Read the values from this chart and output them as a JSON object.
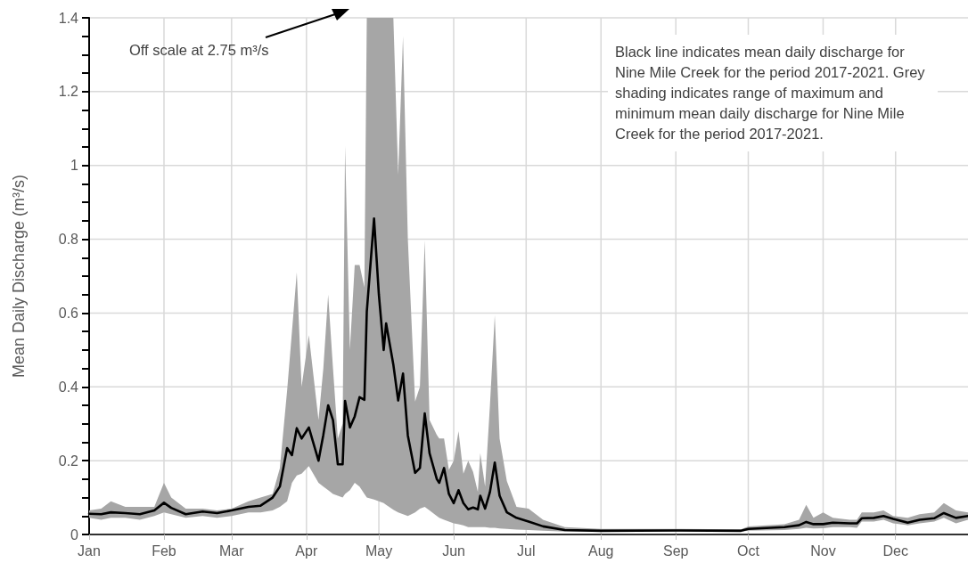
{
  "chart_data": {
    "type": "line",
    "ylabel": "Mean Daily Discharge (m³/s)",
    "annotations": [
      "Off scale at 2.75 m³/s",
      "Black line indicates mean daily discharge for Nine Mile Creek for the period 2017-2021. Grey shading indicates range of maximum and minimum mean daily discharge for Nine Mile Creek for the period 2017-2021."
    ],
    "x": [
      "--01-01",
      "--01-06",
      "--01-10",
      "--01-16",
      "--01-22",
      "--01-28",
      "--02-01",
      "--02-04",
      "--02-10",
      "--02-17",
      "--02-23",
      "--03-01",
      "--03-08",
      "--03-13",
      "--03-18",
      "--03-21",
      "--03-24",
      "--03-26",
      "--03-28",
      "--03-30",
      "--04-02",
      "--04-06",
      "--04-08",
      "--04-10",
      "--04-12",
      "--04-14",
      "--04-16",
      "--04-17",
      "--04-19",
      "--04-21",
      "--04-23",
      "--04-25",
      "--04-26",
      "--04-29",
      "--05-01",
      "--05-03",
      "--05-04",
      "--05-07",
      "--05-09",
      "--05-11",
      "--05-13",
      "--05-16",
      "--05-18",
      "--05-20",
      "--05-22",
      "--05-25",
      "--05-26",
      "--05-28",
      "--05-30",
      "--06-01",
      "--06-03",
      "--06-05",
      "--06-07",
      "--06-09",
      "--06-11",
      "--06-12",
      "--06-14",
      "--06-16",
      "--06-18",
      "--06-20",
      "--06-23",
      "--06-27",
      "--07-02",
      "--07-08",
      "--07-17",
      "--08-01",
      "--09-01",
      "--09-28",
      "--10-01",
      "--10-16",
      "--10-22",
      "--10-25",
      "--10-28",
      "--11-01",
      "--11-05",
      "--11-12",
      "--11-15",
      "--11-17",
      "--11-22",
      "--11-26",
      "--11-30",
      "--12-06",
      "--12-11",
      "--12-17",
      "--12-21",
      "--12-26",
      "--12-31"
    ],
    "series": [
      {
        "color": "#000000",
        "values": [
          0.056,
          0.055,
          0.06,
          0.058,
          0.055,
          0.065,
          0.086,
          0.072,
          0.055,
          0.062,
          0.058,
          0.065,
          0.075,
          0.078,
          0.1,
          0.13,
          0.234,
          0.215,
          0.288,
          0.26,
          0.29,
          0.2,
          0.27,
          0.35,
          0.31,
          0.19,
          0.19,
          0.362,
          0.29,
          0.32,
          0.372,
          0.365,
          0.604,
          0.856,
          0.65,
          0.5,
          0.572,
          0.46,
          0.363,
          0.436,
          0.268,
          0.167,
          0.18,
          0.328,
          0.22,
          0.15,
          0.14,
          0.18,
          0.11,
          0.085,
          0.12,
          0.085,
          0.068,
          0.073,
          0.068,
          0.105,
          0.07,
          0.115,
          0.195,
          0.105,
          0.06,
          0.045,
          0.035,
          0.022,
          0.012,
          0.01,
          0.011,
          0.01,
          0.015,
          0.02,
          0.025,
          0.034,
          0.028,
          0.028,
          0.032,
          0.03,
          0.03,
          0.044,
          0.045,
          0.05,
          0.042,
          0.032,
          0.04,
          0.044,
          0.058,
          0.045,
          0.05
        ],
        "lower": [
          0.045,
          0.04,
          0.045,
          0.045,
          0.04,
          0.05,
          0.06,
          0.055,
          0.045,
          0.05,
          0.045,
          0.05,
          0.06,
          0.06,
          0.065,
          0.075,
          0.09,
          0.14,
          0.16,
          0.165,
          0.185,
          0.14,
          0.13,
          0.12,
          0.11,
          0.105,
          0.1,
          0.11,
          0.12,
          0.14,
          0.13,
          0.11,
          0.1,
          0.095,
          0.09,
          0.085,
          0.08,
          0.067,
          0.06,
          0.055,
          0.05,
          0.06,
          0.07,
          0.075,
          0.065,
          0.05,
          0.045,
          0.04,
          0.035,
          0.03,
          0.028,
          0.025,
          0.02,
          0.02,
          0.02,
          0.02,
          0.02,
          0.018,
          0.018,
          0.016,
          0.015,
          0.013,
          0.012,
          0.01,
          0.008,
          0.007,
          0.008,
          0.008,
          0.01,
          0.012,
          0.015,
          0.018,
          0.016,
          0.017,
          0.02,
          0.02,
          0.018,
          0.035,
          0.035,
          0.04,
          0.03,
          0.025,
          0.03,
          0.035,
          0.045,
          0.03,
          0.04
        ],
        "upper": [
          0.065,
          0.07,
          0.09,
          0.075,
          0.075,
          0.075,
          0.14,
          0.1,
          0.07,
          0.07,
          0.065,
          0.07,
          0.09,
          0.1,
          0.11,
          0.18,
          0.39,
          0.55,
          0.71,
          0.4,
          0.54,
          0.31,
          0.45,
          0.65,
          0.45,
          0.26,
          0.3,
          1.053,
          0.5,
          0.73,
          0.73,
          0.67,
          1.4,
          1.4,
          1.4,
          1.4,
          1.4,
          1.4,
          0.975,
          1.35,
          0.8,
          0.36,
          0.4,
          0.797,
          0.31,
          0.27,
          0.26,
          0.26,
          0.175,
          0.2,
          0.28,
          0.165,
          0.2,
          0.17,
          0.115,
          0.22,
          0.13,
          0.35,
          0.594,
          0.26,
          0.145,
          0.075,
          0.07,
          0.04,
          0.02,
          0.015,
          0.015,
          0.014,
          0.022,
          0.028,
          0.04,
          0.08,
          0.045,
          0.06,
          0.045,
          0.04,
          0.04,
          0.06,
          0.06,
          0.065,
          0.05,
          0.045,
          0.055,
          0.06,
          0.085,
          0.065,
          0.06
        ]
      }
    ],
    "xlim": [
      "--01-01",
      "--12-31"
    ],
    "xticks": [
      {
        "value": "--01-01",
        "label": "Jan"
      },
      {
        "value": "--02-01",
        "label": "Feb"
      },
      {
        "value": "--03-01",
        "label": "Mar"
      },
      {
        "value": "--04-01",
        "label": "Apr"
      },
      {
        "value": "--05-01",
        "label": "May"
      },
      {
        "value": "--06-01",
        "label": "Jun"
      },
      {
        "value": "--07-01",
        "label": "Jul"
      },
      {
        "value": "--08-01",
        "label": "Aug"
      },
      {
        "value": "--09-01",
        "label": "Sep"
      },
      {
        "value": "--10-01",
        "label": "Oct"
      },
      {
        "value": "--11-01",
        "label": "Nov"
      },
      {
        "value": "--12-01",
        "label": "Dec"
      }
    ],
    "ylim": [
      0,
      1.4
    ],
    "yticks": [
      0,
      {
        "value": 0.05,
        "label": null
      },
      {
        "value": 0.1,
        "label": null
      },
      {
        "value": 0.15,
        "label": null
      },
      0.2,
      {
        "value": 0.25,
        "label": null
      },
      {
        "value": 0.3,
        "label": null
      },
      {
        "value": 0.35,
        "label": null
      },
      0.4,
      {
        "value": 0.45,
        "label": null
      },
      {
        "value": 0.5,
        "label": null
      },
      {
        "value": 0.55,
        "label": null
      },
      0.6,
      {
        "value": 0.65,
        "label": null
      },
      {
        "value": 0.7,
        "label": null
      },
      {
        "value": 0.75,
        "label": null
      },
      0.8,
      {
        "value": 0.85,
        "label": null
      },
      {
        "value": 0.9,
        "label": null
      },
      {
        "value": 0.95,
        "label": null
      },
      1,
      {
        "value": 1.05,
        "label": null
      },
      {
        "value": 1.1,
        "label": null
      },
      {
        "value": 1.15,
        "label": null
      },
      1.2,
      {
        "value": 1.25,
        "label": null
      },
      {
        "value": 1.3,
        "label": null
      },
      {
        "value": 1.35,
        "label": null
      },
      1.4
    ],
    "grid": true
  }
}
